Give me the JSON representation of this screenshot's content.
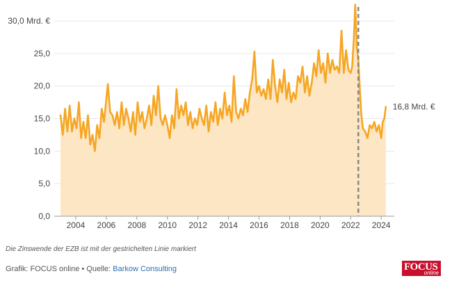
{
  "chart_data": {
    "type": "area",
    "y_ticks": [
      "0,0",
      "5,0",
      "10,0",
      "15,0",
      "20,0",
      "25,0",
      "30,0 Mrd. €"
    ],
    "y_tick_values": [
      0,
      5,
      10,
      15,
      20,
      25,
      30
    ],
    "x_ticks": [
      "2004",
      "2006",
      "2008",
      "2010",
      "2012",
      "2014",
      "2016",
      "2018",
      "2020",
      "2022",
      "2024"
    ],
    "x_tick_values": [
      2004,
      2006,
      2008,
      2010,
      2012,
      2014,
      2016,
      2018,
      2020,
      2022,
      2024
    ],
    "xlim": [
      2003.0,
      2024.4
    ],
    "ylim": [
      0,
      30
    ],
    "grid": true,
    "line_color": "#f5a623",
    "fill_color": "#fde6c4",
    "end_label": "16,8 Mrd. €",
    "marker": {
      "x": 2022.5,
      "style": "dashed",
      "color": "#888888"
    },
    "series": [
      {
        "points": [
          [
            2003.0,
            15.5
          ],
          [
            2003.15,
            12.5
          ],
          [
            2003.3,
            16.5
          ],
          [
            2003.45,
            13.0
          ],
          [
            2003.6,
            17.0
          ],
          [
            2003.75,
            13.0
          ],
          [
            2003.9,
            15.0
          ],
          [
            2004.05,
            13.5
          ],
          [
            2004.2,
            17.5
          ],
          [
            2004.35,
            12.0
          ],
          [
            2004.5,
            14.5
          ],
          [
            2004.65,
            12.0
          ],
          [
            2004.8,
            15.5
          ],
          [
            2004.95,
            11.0
          ],
          [
            2005.1,
            12.5
          ],
          [
            2005.25,
            10.0
          ],
          [
            2005.4,
            14.0
          ],
          [
            2005.55,
            12.0
          ],
          [
            2005.7,
            16.5
          ],
          [
            2005.85,
            14.5
          ],
          [
            2006.0,
            18.0
          ],
          [
            2006.1,
            20.3
          ],
          [
            2006.25,
            16.0
          ],
          [
            2006.4,
            15.5
          ],
          [
            2006.55,
            14.0
          ],
          [
            2006.7,
            16.0
          ],
          [
            2006.85,
            13.5
          ],
          [
            2007.0,
            17.5
          ],
          [
            2007.15,
            14.0
          ],
          [
            2007.3,
            16.5
          ],
          [
            2007.45,
            15.0
          ],
          [
            2007.6,
            13.0
          ],
          [
            2007.75,
            16.0
          ],
          [
            2007.9,
            12.5
          ],
          [
            2008.05,
            17.5
          ],
          [
            2008.2,
            14.5
          ],
          [
            2008.35,
            16.0
          ],
          [
            2008.5,
            13.5
          ],
          [
            2008.65,
            15.0
          ],
          [
            2008.8,
            17.0
          ],
          [
            2008.95,
            14.0
          ],
          [
            2009.1,
            18.5
          ],
          [
            2009.25,
            15.5
          ],
          [
            2009.4,
            20.0
          ],
          [
            2009.55,
            15.0
          ],
          [
            2009.7,
            14.0
          ],
          [
            2009.85,
            15.5
          ],
          [
            2010.0,
            14.0
          ],
          [
            2010.15,
            12.0
          ],
          [
            2010.3,
            15.5
          ],
          [
            2010.45,
            13.5
          ],
          [
            2010.6,
            19.5
          ],
          [
            2010.75,
            15.0
          ],
          [
            2010.9,
            17.0
          ],
          [
            2011.05,
            15.5
          ],
          [
            2011.2,
            17.5
          ],
          [
            2011.35,
            14.0
          ],
          [
            2011.5,
            16.0
          ],
          [
            2011.65,
            13.5
          ],
          [
            2011.8,
            15.0
          ],
          [
            2011.95,
            14.0
          ],
          [
            2012.1,
            16.5
          ],
          [
            2012.25,
            15.0
          ],
          [
            2012.4,
            14.0
          ],
          [
            2012.55,
            17.0
          ],
          [
            2012.7,
            13.0
          ],
          [
            2012.85,
            16.0
          ],
          [
            2013.0,
            14.5
          ],
          [
            2013.15,
            17.5
          ],
          [
            2013.3,
            14.0
          ],
          [
            2013.45,
            16.5
          ],
          [
            2013.6,
            15.0
          ],
          [
            2013.75,
            19.0
          ],
          [
            2013.9,
            15.5
          ],
          [
            2014.05,
            17.0
          ],
          [
            2014.2,
            14.5
          ],
          [
            2014.35,
            21.5
          ],
          [
            2014.5,
            16.0
          ],
          [
            2014.65,
            15.0
          ],
          [
            2014.8,
            16.5
          ],
          [
            2014.95,
            15.5
          ],
          [
            2015.1,
            18.0
          ],
          [
            2015.25,
            16.0
          ],
          [
            2015.4,
            19.0
          ],
          [
            2015.55,
            21.0
          ],
          [
            2015.7,
            25.3
          ],
          [
            2015.85,
            19.0
          ],
          [
            2016.0,
            20.0
          ],
          [
            2016.15,
            18.5
          ],
          [
            2016.3,
            19.5
          ],
          [
            2016.45,
            18.0
          ],
          [
            2016.6,
            21.0
          ],
          [
            2016.75,
            18.0
          ],
          [
            2016.9,
            24.0
          ],
          [
            2017.05,
            20.0
          ],
          [
            2017.2,
            17.5
          ],
          [
            2017.35,
            21.0
          ],
          [
            2017.5,
            19.0
          ],
          [
            2017.65,
            22.5
          ],
          [
            2017.8,
            18.0
          ],
          [
            2017.95,
            20.5
          ],
          [
            2018.1,
            17.5
          ],
          [
            2018.25,
            19.0
          ],
          [
            2018.4,
            18.0
          ],
          [
            2018.55,
            21.5
          ],
          [
            2018.7,
            20.5
          ],
          [
            2018.85,
            23.0
          ],
          [
            2019.0,
            19.0
          ],
          [
            2019.15,
            21.5
          ],
          [
            2019.3,
            18.5
          ],
          [
            2019.45,
            20.5
          ],
          [
            2019.6,
            23.5
          ],
          [
            2019.75,
            21.5
          ],
          [
            2019.9,
            25.5
          ],
          [
            2020.05,
            22.0
          ],
          [
            2020.2,
            23.5
          ],
          [
            2020.35,
            20.5
          ],
          [
            2020.5,
            25.0
          ],
          [
            2020.65,
            22.0
          ],
          [
            2020.8,
            24.0
          ],
          [
            2020.95,
            22.5
          ],
          [
            2021.1,
            23.0
          ],
          [
            2021.25,
            22.0
          ],
          [
            2021.4,
            28.5
          ],
          [
            2021.55,
            22.0
          ],
          [
            2021.7,
            25.5
          ],
          [
            2021.85,
            22.5
          ],
          [
            2022.0,
            22.0
          ],
          [
            2022.1,
            23.0
          ],
          [
            2022.2,
            27.0
          ],
          [
            2022.3,
            32.5
          ],
          [
            2022.4,
            26.0
          ],
          [
            2022.5,
            24.0
          ],
          [
            2022.6,
            19.5
          ],
          [
            2022.7,
            15.5
          ],
          [
            2022.8,
            13.5
          ],
          [
            2022.95,
            13.0
          ],
          [
            2023.1,
            12.0
          ],
          [
            2023.25,
            14.0
          ],
          [
            2023.4,
            13.5
          ],
          [
            2023.55,
            14.5
          ],
          [
            2023.7,
            13.0
          ],
          [
            2023.85,
            14.0
          ],
          [
            2024.0,
            12.0
          ],
          [
            2024.1,
            14.5
          ],
          [
            2024.2,
            15.0
          ],
          [
            2024.3,
            16.8
          ]
        ]
      }
    ]
  },
  "footer": {
    "note": "Die Zinswende der EZB ist mit der gestrichelten Linie markiert",
    "credit_prefix": "Grafik: FOCUS online • Quelle: ",
    "credit_source": "Barkow Consulting"
  },
  "logo": {
    "title": "FOCUS",
    "subtitle": "online",
    "color": "#c8102e"
  }
}
